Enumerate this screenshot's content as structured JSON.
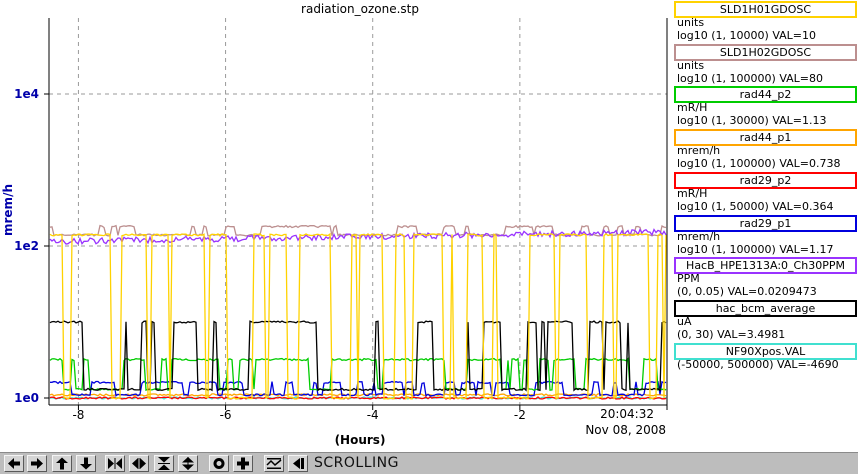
{
  "chart_data": {
    "type": "line",
    "title": "radiation_ozone.stp",
    "ylabel": "mrem/h",
    "xlabel": "(Hours)",
    "y_scale": "log",
    "ylim": [
      1,
      100000
    ],
    "xlim": [
      -8.4,
      0
    ],
    "y_ticks": [
      "1e0",
      "1e2",
      "1e4"
    ],
    "x_ticks": [
      "-8",
      "-6",
      "-4",
      "-2"
    ],
    "time_label": "20:04:32",
    "date_label": "Nov 08, 2008",
    "grid": true,
    "series": [
      {
        "name": "SLD1H01GDOSC",
        "color": "#ffd200",
        "level_high": 140,
        "level_low": 1,
        "switching": true
      },
      {
        "name": "SLD1H02GDOSC",
        "color": "#bc8f8f",
        "level_high": 180,
        "level_low": 140,
        "switching": true
      },
      {
        "name": "rad44_p2",
        "color": "#00cc00",
        "level_high": 3.2,
        "level_low": 1.3,
        "switching": true
      },
      {
        "name": "rad44_p1",
        "color": "#ffa500",
        "level_high": 1.1,
        "level_low": 1,
        "switching": false
      },
      {
        "name": "rad29_p2",
        "color": "#ff0000",
        "level_high": 1,
        "level_low": 1,
        "switching": false
      },
      {
        "name": "rad29_p1",
        "color": "#0000dd",
        "level_high": 1.6,
        "level_low": 1.1,
        "switching": true
      },
      {
        "name": "HacB_HPE1313A:0_Ch30PPM",
        "color": "#9933ff",
        "level_high": 115,
        "level_low": 100,
        "switching": false
      },
      {
        "name": "hac_bcm_average",
        "color": "#000000",
        "level_high": 10,
        "level_low": 1.3,
        "switching": true
      },
      {
        "name": "NF90Xpos.VAL",
        "color": "#40e0d0",
        "level_high": 1,
        "level_low": 1,
        "switching": false
      }
    ]
  },
  "legend": [
    {
      "name": "SLD1H01GDOSC",
      "units": "units",
      "range": "log10 (1, 10000) VAL=10",
      "color": "#ffd200"
    },
    {
      "name": "SLD1H02GDOSC",
      "units": "units",
      "range": "log10 (1, 100000) VAL=80",
      "color": "#bc8f8f"
    },
    {
      "name": "rad44_p2",
      "units": "mR/H",
      "range": "log10 (1, 30000) VAL=1.13",
      "color": "#00cc00"
    },
    {
      "name": "rad44_p1",
      "units": "mrem/h",
      "range": "log10 (1, 100000) VAL=0.738",
      "color": "#ffa500"
    },
    {
      "name": "rad29_p2",
      "units": "mR/H",
      "range": "log10 (1, 50000) VAL=0.364",
      "color": "#ff0000"
    },
    {
      "name": "rad29_p1",
      "units": "mrem/h",
      "range": "log10 (1, 100000) VAL=1.17",
      "color": "#0000dd"
    },
    {
      "name": "HacB_HPE1313A:0_Ch30PPM",
      "units": "PPM",
      "range": "(0, 0.05) VAL=0.0209473",
      "color": "#9933ff"
    },
    {
      "name": "hac_bcm_average",
      "units": "uA",
      "range": "(0, 30) VAL=3.4981",
      "color": "#000000"
    },
    {
      "name": "NF90Xpos.VAL",
      "units": "",
      "range": "(-50000, 500000) VAL=-4690",
      "color": "#40e0d0"
    }
  ],
  "toolbar": {
    "status": "SCROLLING",
    "buttons": [
      "arrow-left-icon",
      "arrow-right-icon",
      "arrow-up-icon",
      "arrow-down-icon",
      "zoom-in-x-icon",
      "zoom-out-x-icon",
      "zoom-in-y-icon",
      "zoom-out-y-icon",
      "record-icon",
      "add-icon",
      "auto-scale-icon",
      "jump-to-end-icon"
    ]
  }
}
